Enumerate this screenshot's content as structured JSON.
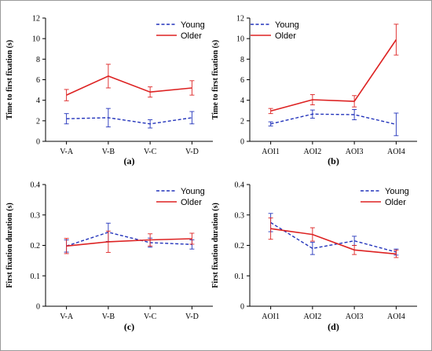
{
  "chart_data": [
    {
      "type": "line",
      "panel_label": "(a)",
      "categories": [
        "V-A",
        "V-B",
        "V-C",
        "V-D"
      ],
      "ylabel": "Time to first fixation (s)",
      "ylim": [
        0,
        12
      ],
      "yticks": [
        0,
        2,
        4,
        6,
        8,
        10,
        12
      ],
      "ytick_labels": [
        "0",
        "2",
        "4",
        "6",
        "8",
        "10",
        "12"
      ],
      "legend_position": "top-right",
      "series": [
        {
          "name": "Young",
          "values": [
            2.2,
            2.3,
            1.7,
            2.3
          ],
          "errors": [
            0.5,
            0.9,
            0.4,
            0.6
          ],
          "color": "#2233bb",
          "dashed": true
        },
        {
          "name": "Older",
          "values": [
            4.5,
            6.35,
            4.8,
            5.2
          ],
          "errors": [
            0.55,
            1.15,
            0.5,
            0.7
          ],
          "color": "#dd2222",
          "dashed": false
        }
      ]
    },
    {
      "type": "line",
      "panel_label": "(b)",
      "categories": [
        "AOI1",
        "AOI2",
        "AOI3",
        "AOI4"
      ],
      "ylabel": "Time to first fixation (s)",
      "ylim": [
        0,
        12
      ],
      "yticks": [
        0,
        2,
        4,
        6,
        8,
        10,
        12
      ],
      "ytick_labels": [
        "0",
        "2",
        "4",
        "6",
        "8",
        "10",
        "12"
      ],
      "legend_position": "top-left",
      "series": [
        {
          "name": "Young",
          "values": [
            1.7,
            2.65,
            2.6,
            1.65
          ],
          "errors": [
            0.2,
            0.4,
            0.5,
            1.1
          ],
          "color": "#2233bb",
          "dashed": true
        },
        {
          "name": "Older",
          "values": [
            2.95,
            4.05,
            3.9,
            9.9
          ],
          "errors": [
            0.25,
            0.5,
            0.55,
            1.5
          ],
          "color": "#dd2222",
          "dashed": false
        }
      ]
    },
    {
      "type": "line",
      "panel_label": "(c)",
      "categories": [
        "V-A",
        "V-B",
        "V-C",
        "V-D"
      ],
      "ylabel": "First fixation duration (s)",
      "ylim": [
        0,
        0.4
      ],
      "yticks": [
        0,
        0.1,
        0.2,
        0.3,
        0.4
      ],
      "ytick_labels": [
        "0",
        "0.1",
        "0.2",
        "0.3",
        "0.4"
      ],
      "legend_position": "top-right",
      "series": [
        {
          "name": "Young",
          "values": [
            0.198,
            0.243,
            0.209,
            0.203
          ],
          "errors": [
            0.02,
            0.03,
            0.015,
            0.015
          ],
          "color": "#2233bb",
          "dashed": true
        },
        {
          "name": "Older",
          "values": [
            0.198,
            0.212,
            0.218,
            0.222
          ],
          "errors": [
            0.025,
            0.035,
            0.02,
            0.018
          ],
          "color": "#dd2222",
          "dashed": false
        }
      ]
    },
    {
      "type": "line",
      "panel_label": "(d)",
      "categories": [
        "AOI1",
        "AOI2",
        "AOI3",
        "AOI4"
      ],
      "ylabel": "First fixation duration (s)",
      "ylim": [
        0,
        0.4
      ],
      "yticks": [
        0,
        0.1,
        0.2,
        0.3,
        0.4
      ],
      "ytick_labels": [
        "0",
        "0.1",
        "0.2",
        "0.3",
        "0.4"
      ],
      "legend_position": "top-right",
      "series": [
        {
          "name": "Young",
          "values": [
            0.275,
            0.19,
            0.215,
            0.178
          ],
          "errors": [
            0.03,
            0.02,
            0.015,
            0.01
          ],
          "color": "#2233bb",
          "dashed": true
        },
        {
          "name": "Older",
          "values": [
            0.255,
            0.236,
            0.185,
            0.172
          ],
          "errors": [
            0.035,
            0.022,
            0.015,
            0.012
          ],
          "color": "#dd2222",
          "dashed": false
        }
      ]
    }
  ]
}
